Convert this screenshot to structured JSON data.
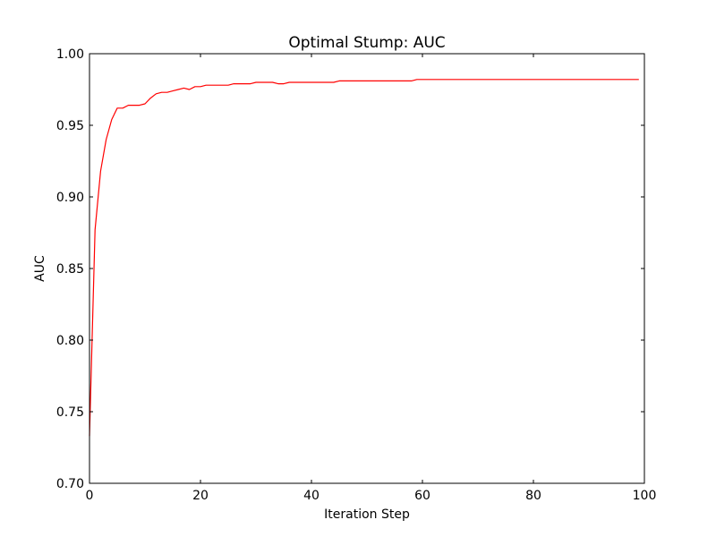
{
  "chart_data": {
    "type": "line",
    "title": "Optimal Stump: AUC",
    "xlabel": "Iteration Step",
    "ylabel": "AUC",
    "xlim": [
      0,
      100
    ],
    "ylim": [
      0.7,
      1.0
    ],
    "xticks": [
      0,
      20,
      40,
      60,
      80,
      100
    ],
    "xtick_labels": [
      "0",
      "20",
      "40",
      "60",
      "80",
      "100"
    ],
    "yticks": [
      0.7,
      0.75,
      0.8,
      0.85,
      0.9,
      0.95,
      1.0
    ],
    "ytick_labels": [
      "0.70",
      "0.75",
      "0.80",
      "0.85",
      "0.90",
      "0.95",
      "1.00"
    ],
    "grid": false,
    "series": [
      {
        "color": "#ff0000",
        "x": [
          0,
          1,
          2,
          3,
          4,
          5,
          6,
          7,
          8,
          9,
          10,
          11,
          12,
          13,
          14,
          15,
          16,
          17,
          18,
          19,
          20,
          21,
          22,
          23,
          24,
          25,
          26,
          27,
          28,
          29,
          30,
          31,
          32,
          33,
          34,
          35,
          36,
          37,
          38,
          39,
          40,
          41,
          42,
          43,
          44,
          45,
          46,
          47,
          48,
          49,
          50,
          51,
          52,
          53,
          54,
          55,
          56,
          57,
          58,
          59,
          60,
          61,
          62,
          63,
          64,
          65,
          66,
          67,
          68,
          69,
          70,
          71,
          72,
          73,
          74,
          75,
          76,
          77,
          78,
          79,
          80,
          81,
          82,
          83,
          84,
          85,
          86,
          87,
          88,
          89,
          90,
          91,
          92,
          93,
          94,
          95,
          96,
          97,
          98,
          99
        ],
        "y": [
          0.733,
          0.877,
          0.918,
          0.94,
          0.954,
          0.962,
          0.962,
          0.964,
          0.964,
          0.964,
          0.965,
          0.969,
          0.972,
          0.973,
          0.973,
          0.974,
          0.975,
          0.976,
          0.975,
          0.977,
          0.977,
          0.978,
          0.978,
          0.978,
          0.978,
          0.978,
          0.979,
          0.979,
          0.979,
          0.979,
          0.98,
          0.98,
          0.98,
          0.98,
          0.979,
          0.979,
          0.98,
          0.98,
          0.98,
          0.98,
          0.98,
          0.98,
          0.98,
          0.98,
          0.98,
          0.981,
          0.981,
          0.981,
          0.981,
          0.981,
          0.981,
          0.981,
          0.981,
          0.981,
          0.981,
          0.981,
          0.981,
          0.981,
          0.981,
          0.982,
          0.982,
          0.982,
          0.982,
          0.982,
          0.982,
          0.982,
          0.982,
          0.982,
          0.982,
          0.982,
          0.982,
          0.982,
          0.982,
          0.982,
          0.982,
          0.982,
          0.982,
          0.982,
          0.982,
          0.982,
          0.982,
          0.982,
          0.982,
          0.982,
          0.982,
          0.982,
          0.982,
          0.982,
          0.982,
          0.982,
          0.982,
          0.982,
          0.982,
          0.982,
          0.982,
          0.982,
          0.982,
          0.982,
          0.982,
          0.982
        ]
      }
    ]
  }
}
